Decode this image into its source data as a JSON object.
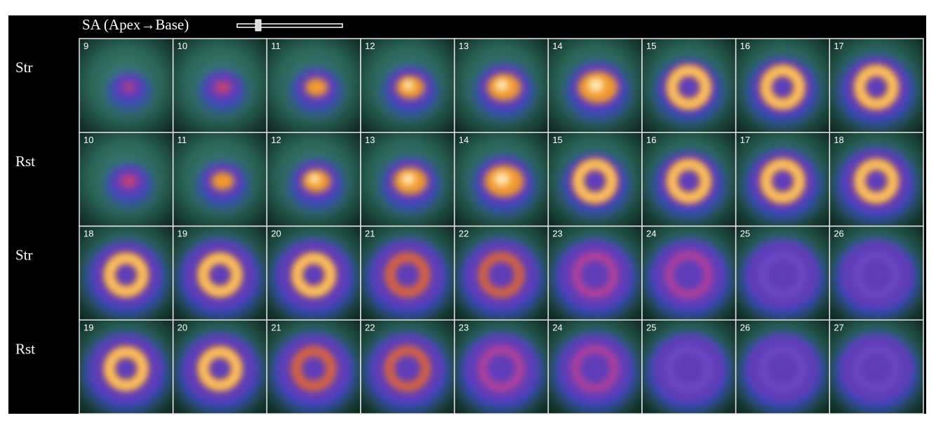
{
  "header": {
    "title": "SA (Apex→Base)"
  },
  "rows": [
    {
      "label": "Str",
      "slices": [
        9,
        10,
        11,
        12,
        13,
        14,
        15,
        16,
        17
      ]
    },
    {
      "label": "Rst",
      "slices": [
        10,
        11,
        12,
        13,
        14,
        15,
        16,
        17,
        18
      ]
    },
    {
      "label": "Str",
      "slices": [
        18,
        19,
        20,
        21,
        22,
        23,
        24,
        25,
        26
      ]
    },
    {
      "label": "Rst",
      "slices": [
        19,
        20,
        21,
        22,
        23,
        24,
        25,
        26,
        27
      ]
    }
  ]
}
